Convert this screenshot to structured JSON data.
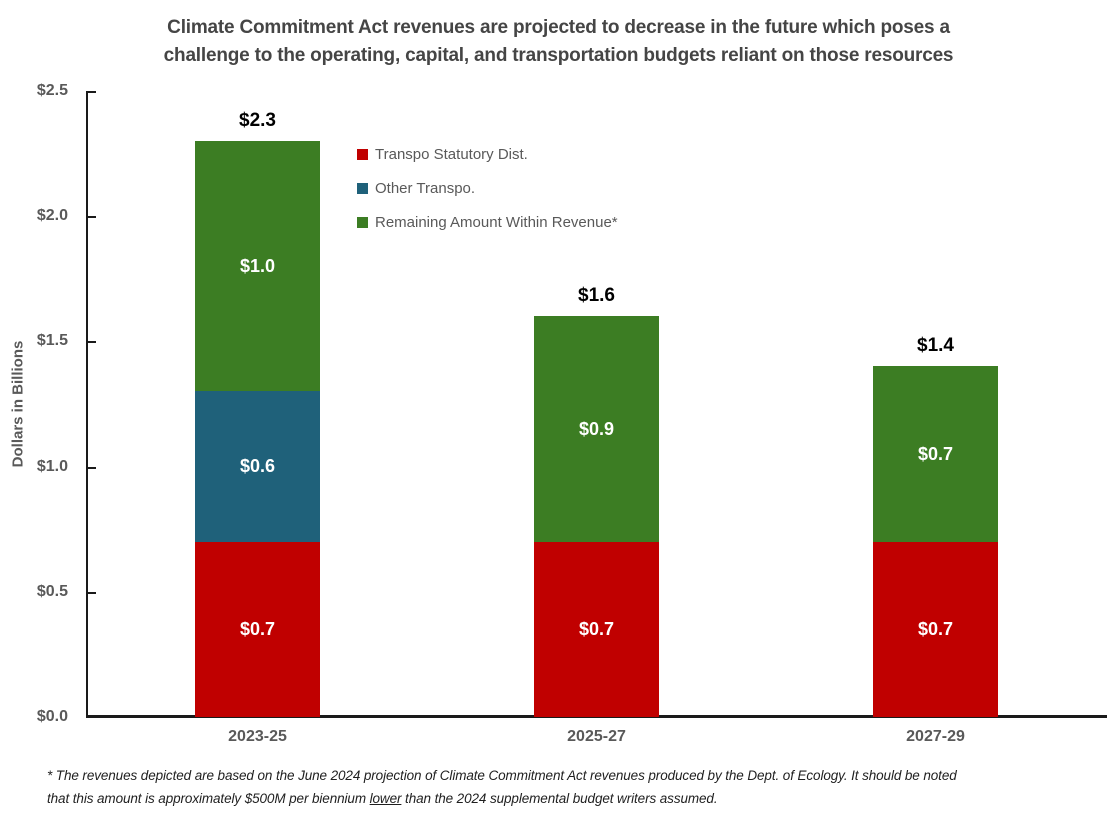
{
  "title": {
    "line1": "Climate Commitment Act revenues are projected to decrease in the future which poses a",
    "line2": "challenge to the operating, capital, and transportation budgets reliant on those resources"
  },
  "y_axis": {
    "title": "Dollars in Billions",
    "tick_labels": [
      "$0.0",
      "$0.5",
      "$1.0",
      "$1.5",
      "$2.0",
      "$2.5"
    ],
    "tick_values": [
      0,
      0.5,
      1.0,
      1.5,
      2.0,
      2.5
    ],
    "max": 2.5
  },
  "x_axis": {
    "categories": [
      "2023-25",
      "2025-27",
      "2027-29"
    ]
  },
  "chart_data": {
    "type": "bar",
    "stacked": true,
    "title": "Climate Commitment Act revenues are projected to decrease in the future which poses a challenge to the operating, capital, and transportation budgets reliant on those resources",
    "xlabel": "",
    "ylabel": "Dollars in Billions",
    "ylim": [
      0,
      2.5
    ],
    "grid": false,
    "legend_position": "upper-left-inside",
    "categories": [
      "2023-25",
      "2025-27",
      "2027-29"
    ],
    "series": [
      {
        "name": "Transpo Statutory Dist.",
        "color": "#C00000",
        "values": [
          0.7,
          0.7,
          0.7
        ],
        "labels": [
          "$0.7",
          "$0.7",
          "$0.7"
        ]
      },
      {
        "name": "Other Transpo.",
        "color": "#1F617A",
        "values": [
          0.6,
          0,
          0
        ],
        "labels": [
          "$0.6",
          "",
          ""
        ]
      },
      {
        "name": "Remaining Amount Within Revenue*",
        "color": "#3C7D23",
        "values": [
          1.0,
          0.9,
          0.7
        ],
        "labels": [
          "$1.0",
          "$0.9",
          "$0.7"
        ]
      }
    ],
    "totals": [
      2.3,
      1.6,
      1.4
    ],
    "totals_text": [
      "$2.3",
      "$1.6",
      "$1.4"
    ]
  },
  "footnote": {
    "line1": "*  The revenues depicted are based on the June 2024 projection of Climate Commitment Act revenues produced by the Dept. of Ecology.  It should be noted",
    "line2_pre": "that this amount is approximately $500M per biennium ",
    "underlined_word": "lower",
    "line2_post": " than the 2024 supplemental budget writers assumed."
  }
}
